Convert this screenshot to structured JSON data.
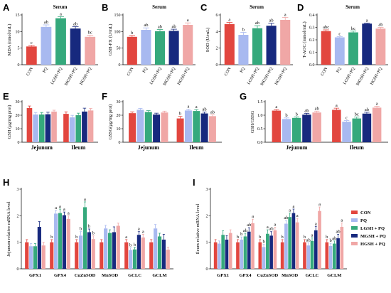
{
  "colors": {
    "CON": "#e2463f",
    "PQ": "#a8b9f0",
    "LGSH+PQ": "#35a97c",
    "MGSH+PQ": "#17297e",
    "HGSH+PQ": "#f0a7a6"
  },
  "legend": {
    "entries": [
      "CON",
      "PQ",
      "LGSH + PQ",
      "MGSH + PQ",
      "HGSH + PQ"
    ],
    "placement": "right of panel I"
  },
  "chart_data": [
    {
      "id": "A",
      "type": "bar",
      "title": "Serum",
      "ylabel": "MDA (nmol/mL)",
      "ylim": [
        0,
        15
      ],
      "yticks": [
        0,
        5,
        10,
        15
      ],
      "categories": [
        "CON",
        "PQ",
        "LGSH+PQ",
        "MGSH+PQ",
        "HGSH+PQ"
      ],
      "values": [
        5.5,
        11.4,
        14.0,
        10.9,
        8.4
      ],
      "errors": [
        0.3,
        0.6,
        0.5,
        0.6,
        0.5
      ],
      "letters": [
        "c",
        "ab",
        "a",
        "ab",
        "bc"
      ]
    },
    {
      "id": "B",
      "type": "bar",
      "title": "Serum",
      "ylabel": "GSH-PX (U/mL)",
      "ylim": [
        0,
        150
      ],
      "yticks": [
        0,
        50,
        100,
        150
      ],
      "categories": [
        "CON",
        "PQ",
        "LGSH+PQ",
        "MGSH+PQ",
        "HGSH+PQ"
      ],
      "values": [
        84,
        105,
        101,
        102,
        120
      ],
      "errors": [
        4,
        6,
        5,
        5,
        6
      ],
      "letters": [
        "b",
        "ab",
        "ab",
        "ab",
        "a"
      ]
    },
    {
      "id": "C",
      "type": "bar",
      "title": "Serum",
      "ylabel": "SOD (U/mL)",
      "ylim": [
        0,
        6
      ],
      "yticks": [
        0,
        2,
        4,
        6
      ],
      "categories": [
        "CON",
        "PQ",
        "LGSH+PQ",
        "MGSH+PQ",
        "HGSH+PQ"
      ],
      "values": [
        4.9,
        3.6,
        4.4,
        4.7,
        5.4
      ],
      "errors": [
        0.2,
        0.3,
        0.3,
        0.3,
        0.3
      ],
      "letters": [
        "a",
        "b",
        "ab",
        "ab",
        "a"
      ]
    },
    {
      "id": "D",
      "type": "bar",
      "title": "Serum",
      "ylabel": "T-AOC (mmol/mL)",
      "ylim": [
        0,
        0.4
      ],
      "yticks": [
        0,
        0.1,
        0.2,
        0.3,
        0.4
      ],
      "categories": [
        "CON",
        "PQ",
        "LGSH+PQ",
        "MGSH+PQ",
        "HGSH+PQ"
      ],
      "values": [
        0.27,
        0.22,
        0.26,
        0.33,
        0.29
      ],
      "errors": [
        0.01,
        0.005,
        0.01,
        0.005,
        0.01
      ],
      "letters": [
        "abc",
        "c",
        "bc",
        "a",
        "ab"
      ]
    },
    {
      "id": "E",
      "type": "bar",
      "ylabel": "GSH (μg/mg prot)",
      "ylim": [
        0,
        30
      ],
      "yticks": [
        0,
        10,
        20,
        30
      ],
      "groups": [
        "Jejunum",
        "Ileum"
      ],
      "series": [
        {
          "key": "CON",
          "values": [
            25.3,
            21.0
          ],
          "errors": [
            1.5,
            1.5
          ]
        },
        {
          "key": "PQ",
          "values": [
            20.5,
            18.4
          ],
          "errors": [
            1.5,
            1.5
          ]
        },
        {
          "key": "LGSH+PQ",
          "values": [
            20.5,
            20.0
          ],
          "errors": [
            1.5,
            1.5
          ]
        },
        {
          "key": "MGSH+PQ",
          "values": [
            20.7,
            22.7
          ],
          "errors": [
            1.5,
            2.5
          ]
        },
        {
          "key": "HGSH+PQ",
          "values": [
            22.7,
            23.5
          ],
          "errors": [
            1.0,
            1.5
          ]
        }
      ],
      "letters": [
        [
          "",
          "",
          "",
          "",
          ""
        ],
        [
          "",
          "",
          "",
          "",
          ""
        ]
      ]
    },
    {
      "id": "F",
      "type": "bar",
      "ylabel": "GSSG(μg/mg prot)",
      "ylim": [
        0,
        30
      ],
      "yticks": [
        0,
        10,
        20,
        30
      ],
      "groups": [
        "Jejunum",
        "Ileum"
      ],
      "series": [
        {
          "key": "CON",
          "values": [
            21.5,
            17.6
          ],
          "errors": [
            1.0,
            1.5
          ]
        },
        {
          "key": "PQ",
          "values": [
            24.0,
            23.5
          ],
          "errors": [
            1.0,
            1.0
          ]
        },
        {
          "key": "LGSH+PQ",
          "values": [
            22.4,
            23.1
          ],
          "errors": [
            1.0,
            1.0
          ]
        },
        {
          "key": "MGSH+PQ",
          "values": [
            20.5,
            21.3
          ],
          "errors": [
            1.0,
            1.0
          ]
        },
        {
          "key": "HGSH+PQ",
          "values": [
            22.0,
            19.3
          ],
          "errors": [
            1.0,
            1.0
          ]
        }
      ],
      "letters": [
        [
          "",
          "",
          "",
          "",
          ""
        ],
        [
          "b",
          "a",
          "a",
          "ab",
          "ab"
        ]
      ]
    },
    {
      "id": "G",
      "type": "bar",
      "ylabel": "GSH/GSSG",
      "ylim": [
        0,
        1.5
      ],
      "yticks": [
        0,
        0.5,
        1.0,
        1.5
      ],
      "groups": [
        "Jejunum",
        "Ileum"
      ],
      "series": [
        {
          "key": "CON",
          "values": [
            1.17,
            1.2
          ],
          "errors": [
            0.04,
            0.06
          ]
        },
        {
          "key": "PQ",
          "values": [
            0.86,
            0.76
          ],
          "errors": [
            0.04,
            0.04
          ]
        },
        {
          "key": "LGSH+PQ",
          "values": [
            0.9,
            0.88
          ],
          "errors": [
            0.04,
            0.05
          ]
        },
        {
          "key": "MGSH+PQ",
          "values": [
            1.02,
            1.06
          ],
          "errors": [
            0.05,
            0.05
          ]
        },
        {
          "key": "HGSH+PQ",
          "values": [
            1.1,
            1.28
          ],
          "errors": [
            0.05,
            0.05
          ]
        }
      ],
      "letters": [
        [
          "a",
          "b",
          "b",
          "ab",
          "ab"
        ],
        [
          "a",
          "c",
          "bc",
          "ab",
          "a"
        ]
      ]
    },
    {
      "id": "H",
      "type": "bar",
      "ylabel": "Jejunum relative mRNA level",
      "ylim": [
        0,
        3
      ],
      "yticks": [
        0,
        1,
        2,
        3
      ],
      "groups": [
        "GPX1",
        "GPX4",
        "CuZnSOD",
        "MnSOD",
        "GCLC",
        "GCLM"
      ],
      "series": [
        {
          "key": "CON",
          "values": [
            1.0,
            1.0,
            1.0,
            1.0,
            1.0,
            1.0
          ],
          "errors": [
            0.1,
            0.1,
            0.1,
            0.1,
            0.1,
            0.1
          ]
        },
        {
          "key": "PQ",
          "values": [
            0.85,
            2.08,
            1.25,
            1.52,
            0.71,
            1.52
          ],
          "errors": [
            0.1,
            0.12,
            0.15,
            0.12,
            0.08,
            0.15
          ]
        },
        {
          "key": "LGSH+PQ",
          "values": [
            0.85,
            2.1,
            2.32,
            1.35,
            0.73,
            1.22
          ],
          "errors": [
            0.1,
            0.15,
            0.2,
            0.12,
            0.08,
            0.12
          ]
        },
        {
          "key": "MGSH+PQ",
          "values": [
            1.58,
            2.02,
            1.38,
            1.38,
            1.28,
            1.1
          ],
          "errors": [
            0.2,
            0.12,
            0.12,
            0.2,
            0.12,
            0.2
          ]
        },
        {
          "key": "HGSH+PQ",
          "values": [
            0.88,
            1.88,
            1.12,
            1.62,
            1.18,
            0.72
          ],
          "errors": [
            0.12,
            0.12,
            0.12,
            0.1,
            0.12,
            0.1
          ]
        }
      ],
      "letters": [
        [
          "",
          "",
          "",
          "",
          ""
        ],
        [
          "b",
          "a",
          "a",
          "a",
          "a"
        ],
        [
          "b",
          "b",
          "a",
          "b",
          "b"
        ],
        [
          "",
          "",
          "",
          "",
          ""
        ],
        [
          "a",
          "b",
          "b",
          "a",
          "a"
        ],
        [
          "",
          "",
          "",
          "",
          ""
        ]
      ]
    },
    {
      "id": "I",
      "type": "bar",
      "ylabel": "Ileum relative mRNA level",
      "ylim": [
        0,
        3
      ],
      "yticks": [
        0,
        1,
        2,
        3
      ],
      "groups": [
        "GPX1",
        "GPX4",
        "CuZnSOD",
        "MnSOD",
        "GCLC",
        "GCLM"
      ],
      "series": [
        {
          "key": "CON",
          "values": [
            1.0,
            1.0,
            1.0,
            1.0,
            1.0,
            1.0
          ],
          "errors": [
            0.1,
            0.1,
            0.1,
            0.1,
            0.1,
            0.1
          ]
        },
        {
          "key": "PQ",
          "values": [
            0.95,
            1.1,
            0.82,
            1.7,
            0.88,
            0.86
          ],
          "errors": [
            0.1,
            0.1,
            0.1,
            0.12,
            0.1,
            0.1
          ]
        },
        {
          "key": "LGSH+PQ",
          "values": [
            1.28,
            1.22,
            1.32,
            1.95,
            1.05,
            0.95
          ],
          "errors": [
            0.15,
            0.12,
            0.15,
            0.15,
            0.12,
            0.1
          ]
        },
        {
          "key": "MGSH+PQ",
          "values": [
            1.1,
            1.4,
            1.25,
            2.1,
            1.45,
            1.15
          ],
          "errors": [
            0.15,
            0.15,
            0.15,
            0.15,
            0.15,
            0.15
          ]
        },
        {
          "key": "HGSH+PQ",
          "values": [
            1.35,
            1.72,
            1.45,
            1.75,
            2.18,
            1.58
          ],
          "errors": [
            0.12,
            0.15,
            0.12,
            0.15,
            0.15,
            0.15
          ]
        }
      ],
      "letters": [
        [
          "",
          "",
          "",
          "",
          ""
        ],
        [
          "b",
          "b",
          "ab",
          "ab",
          "a"
        ],
        [
          "b",
          "b",
          "a",
          "ab",
          "a"
        ],
        [
          "b",
          "ab",
          "a",
          "a",
          "a"
        ],
        [
          "b",
          "ab",
          "a",
          "a",
          "a"
        ],
        [
          "b",
          "b",
          "ab",
          "ab",
          "a"
        ]
      ]
    }
  ]
}
